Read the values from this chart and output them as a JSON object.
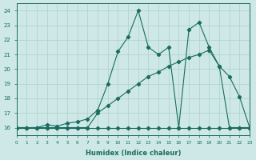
{
  "xlabel": "Humidex (Indice chaleur)",
  "background_color": "#cde8e6",
  "grid_color": "#aed0cd",
  "line_color": "#1a6b60",
  "xlim": [
    0,
    23
  ],
  "ylim": [
    15.5,
    24.5
  ],
  "xticks": [
    0,
    1,
    2,
    3,
    4,
    5,
    6,
    7,
    8,
    9,
    10,
    11,
    12,
    13,
    14,
    15,
    16,
    17,
    18,
    19,
    20,
    21,
    22,
    23
  ],
  "yticks": [
    16,
    17,
    18,
    19,
    20,
    21,
    22,
    23,
    24
  ],
  "series_flat_x": [
    0,
    1,
    2,
    3,
    4,
    5,
    6,
    7,
    8,
    9,
    10,
    11,
    12,
    13,
    14,
    15,
    16,
    17,
    18,
    19,
    20,
    21,
    22,
    23
  ],
  "series_flat_y": [
    16,
    16,
    16,
    16,
    16,
    16,
    16,
    16,
    16,
    16,
    16,
    16,
    16,
    16,
    16,
    16,
    16,
    16,
    16,
    16,
    16,
    16,
    16,
    16
  ],
  "series_jagged_x": [
    0,
    1,
    2,
    3,
    4,
    5,
    6,
    7,
    8,
    9,
    10,
    11,
    12,
    13,
    14,
    15,
    16,
    17,
    18,
    19,
    20,
    21,
    22,
    23
  ],
  "series_jagged_y": [
    16,
    16,
    16,
    16.2,
    16.1,
    16.3,
    16.4,
    16.6,
    17.2,
    19.0,
    21.2,
    22.2,
    24.0,
    21.5,
    21.0,
    21.5,
    16.0,
    22.7,
    23.2,
    21.5,
    20.2,
    19.5,
    18.1,
    16.0
  ],
  "series_smooth_x": [
    0,
    1,
    2,
    3,
    4,
    5,
    6,
    7,
    8,
    9,
    10,
    11,
    12,
    13,
    14,
    15,
    16,
    17,
    18,
    19,
    20,
    21,
    22,
    23
  ],
  "series_smooth_y": [
    16,
    16,
    16,
    16,
    16,
    16,
    16,
    16,
    17.0,
    17.5,
    18.0,
    18.5,
    19.0,
    19.5,
    19.8,
    20.2,
    20.5,
    20.8,
    21.0,
    21.3,
    20.2,
    16,
    16,
    16
  ]
}
